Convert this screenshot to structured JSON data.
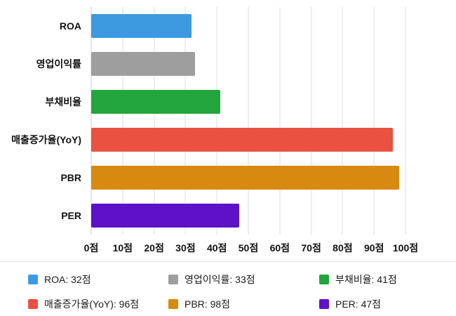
{
  "chart_data": {
    "type": "bar",
    "orientation": "horizontal",
    "title": "",
    "categories": [
      "ROA",
      "영업이익률",
      "부채비율",
      "매출증가율(YoY)",
      "PBR",
      "PER"
    ],
    "values": [
      32,
      33,
      41,
      96,
      98,
      47
    ],
    "colors": [
      "#3d9ae0",
      "#9e9e9e",
      "#22a53c",
      "#eb5140",
      "#d8890f",
      "#5e11c9"
    ],
    "unit": "점",
    "xlim": [
      0,
      100
    ],
    "x_ticks": [
      0,
      10,
      20,
      30,
      40,
      50,
      60,
      70,
      80,
      90,
      100
    ],
    "x_tick_labels": [
      "0점",
      "10점",
      "20점",
      "30점",
      "40점",
      "50점",
      "60점",
      "70점",
      "80점",
      "90점",
      "100점"
    ],
    "grid": true,
    "legend_position": "bottom"
  },
  "legend": {
    "items": [
      {
        "label": "ROA: 32점",
        "color": "#3d9ae0"
      },
      {
        "label": "영업이익률: 33점",
        "color": "#9e9e9e"
      },
      {
        "label": "부채비율: 41점",
        "color": "#22a53c"
      },
      {
        "label": "매출증가율(YoY): 96점",
        "color": "#eb5140"
      },
      {
        "label": "PBR: 98점",
        "color": "#d8890f"
      },
      {
        "label": "PER: 47점",
        "color": "#5e11c9"
      }
    ]
  }
}
